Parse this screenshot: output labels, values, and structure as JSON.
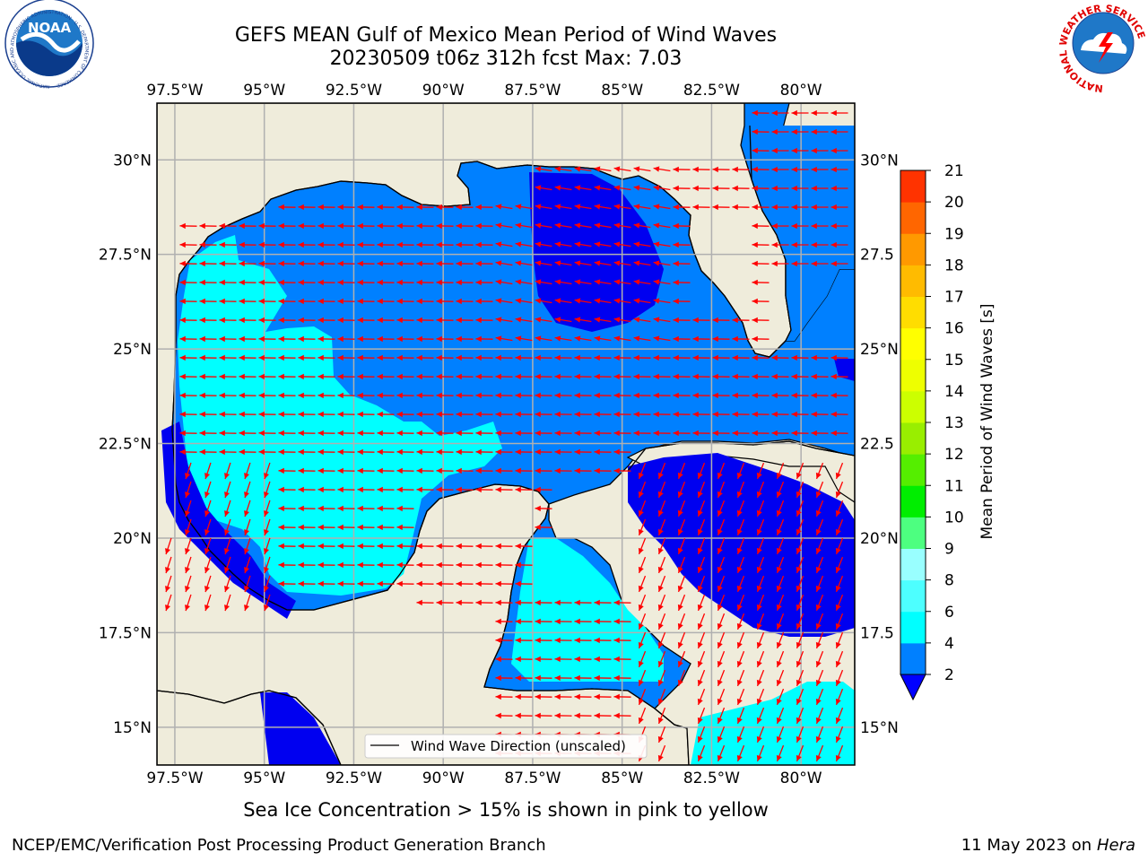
{
  "title": {
    "line1": "GEFS MEAN Gulf of Mexico Mean Period of Wind Waves",
    "line2": "20230509 t06z 312h fcst   Max: 7.03"
  },
  "map": {
    "lon_labels": [
      "97.5°W",
      "95°W",
      "92.5°W",
      "90°W",
      "87.5°W",
      "85°W",
      "82.5°W",
      "80°W"
    ],
    "lat_labels": [
      "30°N",
      "27.5°N",
      "25°N",
      "22.5°N",
      "20°N",
      "17.5°N",
      "15°N"
    ],
    "right_lat_labels": [
      "30°N",
      "27.5",
      "25°N",
      "22.5",
      "20°N",
      "17.5",
      "15°N"
    ],
    "lon_range": [
      -98,
      -78.5
    ],
    "lat_range": [
      14,
      31.5
    ],
    "grid": true,
    "colors": {
      "land": "#efecdb",
      "period_2_4": "#0080ff",
      "period_lt_2": "#0000f0",
      "period_4_6": "#00ffff",
      "arrow": "#ff0000",
      "grid": "#b0b0b0"
    },
    "legend_label": "Wind Wave Direction (unscaled)",
    "legend_position": "lower-center"
  },
  "colorbar": {
    "label": "Mean Period of Wind Waves [s]",
    "ticks": [
      "2",
      "4",
      "6",
      "8",
      "9",
      "10",
      "11",
      "12",
      "13",
      "14",
      "15",
      "16",
      "17",
      "18",
      "19",
      "20",
      "21"
    ],
    "colors": [
      "#0080ff",
      "#00ffff",
      "#4dffff",
      "#99ffff",
      "#4dff80",
      "#00ee00",
      "#55ee00",
      "#99ee00",
      "#ccff00",
      "#eeff00",
      "#ffff00",
      "#ffdd00",
      "#ffbb00",
      "#ff9900",
      "#ff6600",
      "#ff3300"
    ],
    "extend_color": "#0000ff"
  },
  "note": "Sea Ice Concentration > 15% is shown in pink to yellow",
  "footer": {
    "left": "NCEP/EMC/Verification Post Processing Product Generation Branch",
    "right_date": "11 May 2023 on",
    "right_host": "Hera"
  },
  "logos": {
    "noaa_text": "NOAA",
    "noaa_ring": "NATIONAL OCEANIC AND ATMOSPHERIC ADMINISTRATION · U.S. DEPARTMENT OF COMMERCE",
    "nws_ring": "NATIONAL WEATHER SERVICE"
  }
}
